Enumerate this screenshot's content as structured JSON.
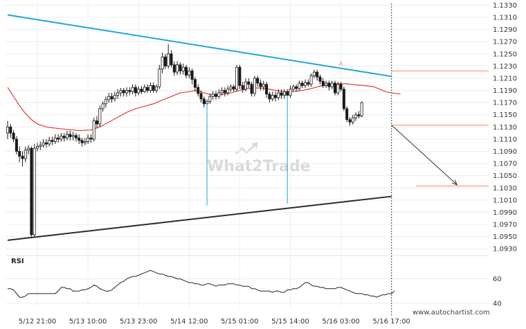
{
  "watermark": "What2Trade",
  "site_url": "www.autochartist.com",
  "colors": {
    "bull": "#ffffff",
    "bear": "#1a1a1a",
    "candle_outline": "#1a1a1a",
    "resistance": "#1ea6dc",
    "support": "#2b2b2b",
    "ma": "#e33b3b",
    "target_lines": "#ff8a5b",
    "projection_arrow": "#333333",
    "current_line": "#1b5e6a"
  },
  "icons": {
    "watermark_logo": "checkmark-arrow-icon"
  },
  "chart_data": [
    {
      "type": "candlestick",
      "title": "",
      "ylim": [
        1.092,
        1.1335
      ],
      "y_ticks": [
        "1.0930",
        "1.0950",
        "1.0970",
        "1.0990",
        "1.1010",
        "1.1030",
        "1.1050",
        "1.1070",
        "1.1090",
        "1.1110",
        "1.1130",
        "1.1150",
        "1.1170",
        "1.1190",
        "1.1210",
        "1.1230",
        "1.1250",
        "1.1270",
        "1.1290",
        "1.1310",
        "1.1330"
      ],
      "x_ticks": [
        {
          "label": "5/12 21:00",
          "index": 10
        },
        {
          "label": "5/13 10:00",
          "index": 27
        },
        {
          "label": "5/13 23:00",
          "index": 44
        },
        {
          "label": "5/14 12:00",
          "index": 61
        },
        {
          "label": "5/15 01:00",
          "index": 78
        },
        {
          "label": "5/15 14:00",
          "index": 95
        },
        {
          "label": "5/16 03:00",
          "index": 112
        },
        {
          "label": "5/16 17:00",
          "index": 129
        }
      ],
      "current_bar_index": 129,
      "candles": [
        [
          1.112,
          1.113,
          1.114,
          1.111
        ],
        [
          1.113,
          1.112,
          1.1135,
          1.1112
        ],
        [
          1.112,
          1.111,
          1.1125,
          1.1105
        ],
        [
          1.111,
          1.109,
          1.1115,
          1.1085
        ],
        [
          1.109,
          1.1082,
          1.1098,
          1.1072
        ],
        [
          1.1082,
          1.1078,
          1.109,
          1.1065
        ],
        [
          1.1078,
          1.1092,
          1.1098,
          1.1072
        ],
        [
          1.1092,
          1.1095,
          1.11,
          1.1085
        ],
        [
          1.1095,
          1.0953,
          1.1098,
          1.095
        ],
        [
          1.0953,
          1.1095,
          1.1102,
          1.095
        ],
        [
          1.1095,
          1.1098,
          1.1104,
          1.109
        ],
        [
          1.1098,
          1.11,
          1.1106,
          1.1092
        ],
        [
          1.11,
          1.1104,
          1.111,
          1.1096
        ],
        [
          1.1104,
          1.1102,
          1.111,
          1.1096
        ],
        [
          1.1102,
          1.1108,
          1.1114,
          1.1098
        ],
        [
          1.1108,
          1.1106,
          1.1114,
          1.11
        ],
        [
          1.1106,
          1.1112,
          1.1118,
          1.1102
        ],
        [
          1.1112,
          1.111,
          1.1118,
          1.1104
        ],
        [
          1.111,
          1.1115,
          1.112,
          1.1106
        ],
        [
          1.1115,
          1.1112,
          1.112,
          1.1106
        ],
        [
          1.1112,
          1.1118,
          1.1124,
          1.1108
        ],
        [
          1.1118,
          1.1114,
          1.1124,
          1.1108
        ],
        [
          1.1114,
          1.1116,
          1.1122,
          1.1108
        ],
        [
          1.1116,
          1.1112,
          1.112,
          1.1106
        ],
        [
          1.1112,
          1.1108,
          1.1118,
          1.1102
        ],
        [
          1.1108,
          1.1104,
          1.1112,
          1.1098
        ],
        [
          1.1104,
          1.1106,
          1.1112,
          1.11
        ],
        [
          1.1106,
          1.1112,
          1.1118,
          1.1102
        ],
        [
          1.1112,
          1.111,
          1.1118,
          1.1104
        ],
        [
          1.111,
          1.114,
          1.1145,
          1.1106
        ],
        [
          1.114,
          1.1135,
          1.1148,
          1.1128
        ],
        [
          1.1135,
          1.116,
          1.1165,
          1.113
        ],
        [
          1.116,
          1.1168,
          1.1172,
          1.1155
        ],
        [
          1.1168,
          1.1175,
          1.118,
          1.1162
        ],
        [
          1.1175,
          1.118,
          1.1186,
          1.117
        ],
        [
          1.118,
          1.1176,
          1.1186,
          1.117
        ],
        [
          1.1176,
          1.1182,
          1.1188,
          1.1172
        ],
        [
          1.1182,
          1.1186,
          1.1192,
          1.1176
        ],
        [
          1.1186,
          1.119,
          1.1194,
          1.118
        ],
        [
          1.119,
          1.1186,
          1.1194,
          1.118
        ],
        [
          1.1186,
          1.119,
          1.1195,
          1.118
        ],
        [
          1.119,
          1.1188,
          1.1195,
          1.1182
        ],
        [
          1.1188,
          1.1195,
          1.12,
          1.1184
        ],
        [
          1.1195,
          1.1186,
          1.12,
          1.118
        ],
        [
          1.1186,
          1.1192,
          1.1197,
          1.1182
        ],
        [
          1.1192,
          1.1188,
          1.1197,
          1.1184
        ],
        [
          1.1188,
          1.1195,
          1.12,
          1.1186
        ],
        [
          1.1195,
          1.119,
          1.12,
          1.1186
        ],
        [
          1.119,
          1.1198,
          1.1203,
          1.1186
        ],
        [
          1.1198,
          1.119,
          1.1203,
          1.1186
        ],
        [
          1.119,
          1.1196,
          1.12,
          1.1186
        ],
        [
          1.1196,
          1.1225,
          1.1232,
          1.1192
        ],
        [
          1.1225,
          1.1245,
          1.1252,
          1.1218
        ],
        [
          1.1245,
          1.123,
          1.125,
          1.1225
        ],
        [
          1.123,
          1.125,
          1.1266,
          1.1226
        ],
        [
          1.125,
          1.1232,
          1.1256,
          1.1228
        ],
        [
          1.1232,
          1.122,
          1.1238,
          1.1214
        ],
        [
          1.122,
          1.1232,
          1.1238,
          1.1215
        ],
        [
          1.1232,
          1.1222,
          1.1236,
          1.1216
        ],
        [
          1.1222,
          1.1228,
          1.1234,
          1.1216
        ],
        [
          1.1228,
          1.1215,
          1.1232,
          1.121
        ],
        [
          1.1215,
          1.1222,
          1.1228,
          1.121
        ],
        [
          1.1222,
          1.1208,
          1.1226,
          1.12
        ],
        [
          1.1208,
          1.1195,
          1.1212,
          1.1188
        ],
        [
          1.1195,
          1.1185,
          1.12,
          1.118
        ],
        [
          1.1185,
          1.1176,
          1.119,
          1.117
        ],
        [
          1.1176,
          1.1168,
          1.118,
          1.1162
        ],
        [
          1.1168,
          1.1172,
          1.1175,
          1.1001
        ],
        [
          1.1172,
          1.118,
          1.1185,
          1.1168
        ],
        [
          1.118,
          1.1184,
          1.1189,
          1.1175
        ],
        [
          1.1184,
          1.118,
          1.1189,
          1.1175
        ],
        [
          1.118,
          1.1186,
          1.1192,
          1.1176
        ],
        [
          1.1186,
          1.119,
          1.1195,
          1.1182
        ],
        [
          1.119,
          1.1186,
          1.1195,
          1.118
        ],
        [
          1.1186,
          1.1192,
          1.1198,
          1.1182
        ],
        [
          1.1192,
          1.1196,
          1.12,
          1.1188
        ],
        [
          1.1196,
          1.1192,
          1.12,
          1.1188
        ],
        [
          1.1192,
          1.1228,
          1.1232,
          1.1188
        ],
        [
          1.1228,
          1.1198,
          1.1232,
          1.1192
        ],
        [
          1.1198,
          1.1192,
          1.1204,
          1.1186
        ],
        [
          1.1192,
          1.1204,
          1.121,
          1.1188
        ],
        [
          1.1204,
          1.12,
          1.121,
          1.1194
        ],
        [
          1.12,
          1.1185,
          1.1204,
          1.118
        ],
        [
          1.1185,
          1.121,
          1.1214,
          1.118
        ],
        [
          1.121,
          1.1202,
          1.1214,
          1.1196
        ],
        [
          1.1202,
          1.1196,
          1.1208,
          1.119
        ],
        [
          1.1196,
          1.12,
          1.1206,
          1.119
        ],
        [
          1.12,
          1.1184,
          1.1204,
          1.1178
        ],
        [
          1.1184,
          1.1176,
          1.1188,
          1.117
        ],
        [
          1.1176,
          1.1182,
          1.1188,
          1.1172
        ],
        [
          1.1182,
          1.1178,
          1.1188,
          1.1172
        ],
        [
          1.1178,
          1.1186,
          1.1192,
          1.1174
        ],
        [
          1.1186,
          1.1182,
          1.1192,
          1.1176
        ],
        [
          1.1182,
          1.1188,
          1.1192,
          1.1176
        ],
        [
          1.1188,
          1.1182,
          1.1192,
          1.1004
        ],
        [
          1.1182,
          1.1192,
          1.1198,
          1.1178
        ],
        [
          1.1192,
          1.1196,
          1.12,
          1.1188
        ],
        [
          1.1196,
          1.1193,
          1.12,
          1.1188
        ],
        [
          1.1193,
          1.1202,
          1.1206,
          1.119
        ],
        [
          1.1202,
          1.1198,
          1.1206,
          1.1194
        ],
        [
          1.1198,
          1.1203,
          1.1208,
          1.1194
        ],
        [
          1.1203,
          1.12,
          1.1208,
          1.1196
        ],
        [
          1.12,
          1.1214,
          1.1218,
          1.1196
        ],
        [
          1.1214,
          1.122,
          1.1224,
          1.121
        ],
        [
          1.122,
          1.1212,
          1.1224,
          1.1206
        ],
        [
          1.1212,
          1.1205,
          1.1216,
          1.12
        ],
        [
          1.1205,
          1.1198,
          1.121,
          1.1194
        ],
        [
          1.1198,
          1.1202,
          1.1206,
          1.1194
        ],
        [
          1.1202,
          1.1196,
          1.1206,
          1.119
        ],
        [
          1.1196,
          1.1202,
          1.1206,
          1.1192
        ],
        [
          1.1202,
          1.1186,
          1.1206,
          1.1182
        ],
        [
          1.1186,
          1.12,
          1.1204,
          1.1182
        ],
        [
          1.12,
          1.1192,
          1.1204,
          1.1188
        ],
        [
          1.1192,
          1.116,
          1.1196,
          1.1156
        ],
        [
          1.116,
          1.1142,
          1.1164,
          1.1138
        ],
        [
          1.1142,
          1.1138,
          1.1146,
          1.1132
        ],
        [
          1.1138,
          1.1145,
          1.115,
          1.1134
        ],
        [
          1.1145,
          1.115,
          1.1154,
          1.114
        ],
        [
          1.115,
          1.1148,
          1.1156,
          1.1144
        ],
        [
          1.1148,
          1.117,
          1.1172,
          1.1146
        ]
      ],
      "moving_average": [
        [
          0,
          1.1195
        ],
        [
          2,
          1.118
        ],
        [
          4,
          1.1165
        ],
        [
          6,
          1.1152
        ],
        [
          8,
          1.1142
        ],
        [
          10,
          1.1135
        ],
        [
          13,
          1.113
        ],
        [
          16,
          1.1128
        ],
        [
          20,
          1.1126
        ],
        [
          24,
          1.1124
        ],
        [
          28,
          1.1125
        ],
        [
          31,
          1.113
        ],
        [
          34,
          1.1138
        ],
        [
          37,
          1.1146
        ],
        [
          40,
          1.1154
        ],
        [
          43,
          1.116
        ],
        [
          46,
          1.1164
        ],
        [
          49,
          1.1168
        ],
        [
          52,
          1.1174
        ],
        [
          55,
          1.118
        ],
        [
          58,
          1.1186
        ],
        [
          61,
          1.1188
        ],
        [
          63,
          1.119
        ],
        [
          66,
          1.1186
        ],
        [
          69,
          1.1182
        ],
        [
          72,
          1.1183
        ],
        [
          75,
          1.1186
        ],
        [
          78,
          1.119
        ],
        [
          81,
          1.1193
        ],
        [
          84,
          1.1194
        ],
        [
          87,
          1.1193
        ],
        [
          90,
          1.119
        ],
        [
          93,
          1.1188
        ],
        [
          96,
          1.1188
        ],
        [
          99,
          1.119
        ],
        [
          102,
          1.1193
        ],
        [
          105,
          1.1197
        ],
        [
          108,
          1.1199
        ],
        [
          111,
          1.1201
        ],
        [
          114,
          1.1201
        ],
        [
          117,
          1.1199
        ],
        [
          120,
          1.1198
        ],
        [
          123,
          1.1196
        ],
        [
          125,
          1.1192
        ],
        [
          127,
          1.1188
        ],
        [
          129,
          1.1186
        ],
        [
          132,
          1.1184
        ]
      ],
      "pattern": {
        "resistance": [
          [
            0,
            1.1314
          ],
          [
            129,
            1.1213
          ]
        ],
        "support": [
          [
            0,
            1.0944
          ],
          [
            129,
            1.1016
          ]
        ],
        "target_upper": {
          "value": 1.1222,
          "from_index": 129
        },
        "target_lower": {
          "value": 1.1033,
          "from_index": 132
        },
        "current_level": {
          "value": 1.1133,
          "from_index": 129
        },
        "projection": [
          [
            129,
            1.1133
          ],
          [
            138,
            1.1035
          ]
        ],
        "marker": {
          "index": 112,
          "value": 1.1228,
          "label": "A"
        }
      }
    },
    {
      "type": "line",
      "title": "RSI",
      "ylim": [
        36,
        70
      ],
      "y_ticks": [
        "40",
        "60"
      ],
      "series": [
        {
          "values": [
            52,
            52,
            51,
            48,
            45,
            45,
            46,
            48,
            48,
            48,
            48,
            48,
            48,
            48,
            48,
            48,
            48,
            50,
            53,
            53,
            52,
            52,
            50,
            50,
            50,
            51,
            51,
            52,
            53,
            55,
            54,
            52,
            51,
            50,
            50,
            51,
            53,
            55,
            57,
            58,
            60,
            61,
            62,
            62,
            63,
            64,
            65,
            66,
            67,
            66,
            65,
            64,
            64,
            63,
            62,
            62,
            61,
            60,
            60,
            59,
            58,
            57,
            57,
            56,
            56,
            55,
            55,
            56,
            56,
            55,
            54,
            55,
            55,
            55,
            56,
            56,
            56,
            55,
            55,
            54,
            54,
            54,
            52,
            52,
            51,
            50,
            50,
            50,
            50,
            49,
            50,
            50,
            49,
            49,
            51,
            51,
            52,
            52,
            53,
            55,
            57,
            57,
            55,
            54,
            54,
            53,
            53,
            52,
            52,
            52,
            52,
            53,
            53,
            52,
            51,
            50,
            49,
            48,
            48,
            48,
            47,
            47,
            46,
            46,
            45,
            46,
            47,
            47,
            48,
            48,
            50
          ]
        }
      ]
    }
  ]
}
